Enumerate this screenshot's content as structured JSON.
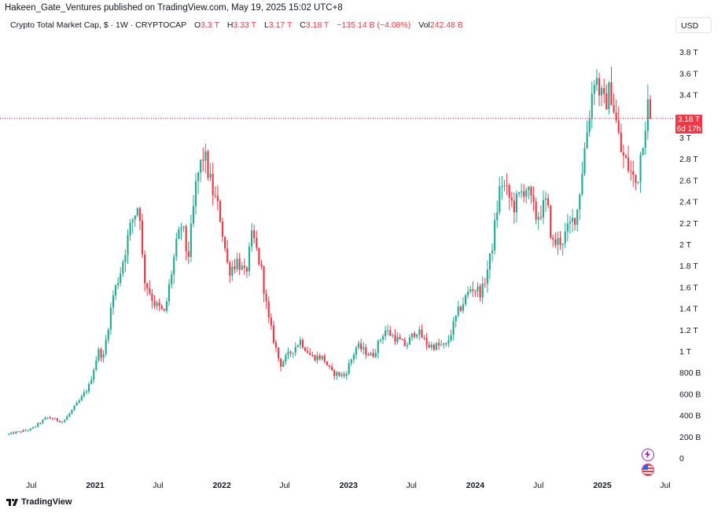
{
  "publisher": "Hakeen_Gate_Ventures published on TradingView.com, May 19, 2025 15:02 UTC+8",
  "legend": {
    "title": "Crypto Total Market Cap, $ · 1W · CRYPTOCAP",
    "o_label": "O",
    "o_value": "3.3 T",
    "h_label": "H",
    "h_value": "3.33 T",
    "l_label": "L",
    "l_value": "3.17 T",
    "c_label": "C",
    "c_value": "3.18 T",
    "change": "−135.14 B (−4.08%)",
    "vol_label": "Vol",
    "vol_value": "242.48 B"
  },
  "currency_button": "USD",
  "price_tag": {
    "price": "3.18 T",
    "countdown": "6d 17h"
  },
  "footer_brand": "TradingView",
  "colors": {
    "up": "#22ab94",
    "down": "#f23645",
    "axis_text": "#131722",
    "price_line": "#f23645"
  },
  "icons": {
    "bolt": "lightning-bolt-icon",
    "flag": "us-flag-icon",
    "logo": "tradingview-logo-icon"
  },
  "chart_data": {
    "type": "candlestick",
    "title": "Crypto Total Market Cap, $ · 1W · CRYPTOCAP",
    "y_axis_labels": [
      "3.8 T",
      "3.6 T",
      "3.4 T",
      "3 T",
      "2.8 T",
      "2.6 T",
      "2.4 T",
      "2.2 T",
      "2 T",
      "1.8 T",
      "1.6 T",
      "1.4 T",
      "1.2 T",
      "1 T",
      "800 B",
      "600 B",
      "400 B",
      "200 B",
      "0"
    ],
    "y_axis_values": [
      3.8,
      3.6,
      3.4,
      3.0,
      2.8,
      2.6,
      2.4,
      2.2,
      2.0,
      1.8,
      1.6,
      1.4,
      1.2,
      1.0,
      0.8,
      0.6,
      0.4,
      0.2,
      0
    ],
    "x_axis_labels": [
      "Jul",
      "2021",
      "Jul",
      "2022",
      "Jul",
      "2023",
      "Jul",
      "2024",
      "Jul",
      "2025",
      "Jul"
    ],
    "x_axis_dates": [
      "2020-07-01",
      "2021-01-01",
      "2021-07-01",
      "2022-01-01",
      "2022-07-01",
      "2023-01-01",
      "2023-07-01",
      "2024-01-01",
      "2024-07-01",
      "2025-01-01",
      "2025-07-01"
    ],
    "unit": "trillion USD",
    "current_close": 3.18,
    "anchors": [
      {
        "date": "2020-04-20",
        "value": 0.22
      },
      {
        "date": "2020-07-01",
        "value": 0.27
      },
      {
        "date": "2020-08-15",
        "value": 0.38
      },
      {
        "date": "2020-10-01",
        "value": 0.34
      },
      {
        "date": "2020-11-20",
        "value": 0.55
      },
      {
        "date": "2020-12-15",
        "value": 0.68
      },
      {
        "date": "2021-01-10",
        "value": 1.0
      },
      {
        "date": "2021-01-25",
        "value": 0.95
      },
      {
        "date": "2021-02-20",
        "value": 1.5
      },
      {
        "date": "2021-03-15",
        "value": 1.75
      },
      {
        "date": "2021-04-15",
        "value": 2.2
      },
      {
        "date": "2021-05-08",
        "value": 2.4
      },
      {
        "date": "2021-05-20",
        "value": 1.7
      },
      {
        "date": "2021-06-20",
        "value": 1.45
      },
      {
        "date": "2021-07-20",
        "value": 1.35
      },
      {
        "date": "2021-08-20",
        "value": 1.95
      },
      {
        "date": "2021-09-08",
        "value": 2.2
      },
      {
        "date": "2021-09-25",
        "value": 1.85
      },
      {
        "date": "2021-10-20",
        "value": 2.6
      },
      {
        "date": "2021-11-10",
        "value": 2.85
      },
      {
        "date": "2021-12-05",
        "value": 2.5
      },
      {
        "date": "2021-12-25",
        "value": 2.3
      },
      {
        "date": "2022-01-20",
        "value": 1.75
      },
      {
        "date": "2022-02-15",
        "value": 1.85
      },
      {
        "date": "2022-03-10",
        "value": 1.7
      },
      {
        "date": "2022-03-30",
        "value": 2.1
      },
      {
        "date": "2022-04-25",
        "value": 1.75
      },
      {
        "date": "2022-05-15",
        "value": 1.3
      },
      {
        "date": "2022-06-18",
        "value": 0.87
      },
      {
        "date": "2022-07-20",
        "value": 1.0
      },
      {
        "date": "2022-08-15",
        "value": 1.1
      },
      {
        "date": "2022-09-15",
        "value": 0.95
      },
      {
        "date": "2022-10-20",
        "value": 0.94
      },
      {
        "date": "2022-11-12",
        "value": 0.8
      },
      {
        "date": "2022-12-20",
        "value": 0.77
      },
      {
        "date": "2023-01-25",
        "value": 1.05
      },
      {
        "date": "2023-03-10",
        "value": 0.95
      },
      {
        "date": "2023-04-15",
        "value": 1.2
      },
      {
        "date": "2023-06-15",
        "value": 1.05
      },
      {
        "date": "2023-07-15",
        "value": 1.2
      },
      {
        "date": "2023-08-20",
        "value": 1.05
      },
      {
        "date": "2023-10-10",
        "value": 1.05
      },
      {
        "date": "2023-11-10",
        "value": 1.35
      },
      {
        "date": "2023-12-20",
        "value": 1.6
      },
      {
        "date": "2024-01-20",
        "value": 1.55
      },
      {
        "date": "2024-02-15",
        "value": 1.9
      },
      {
        "date": "2024-03-15",
        "value": 2.6
      },
      {
        "date": "2024-04-20",
        "value": 2.35
      },
      {
        "date": "2024-05-25",
        "value": 2.55
      },
      {
        "date": "2024-06-25",
        "value": 2.25
      },
      {
        "date": "2024-07-25",
        "value": 2.4
      },
      {
        "date": "2024-08-10",
        "value": 2.0
      },
      {
        "date": "2024-09-10",
        "value": 2.05
      },
      {
        "date": "2024-10-20",
        "value": 2.3
      },
      {
        "date": "2024-11-15",
        "value": 3.0
      },
      {
        "date": "2024-12-10",
        "value": 3.6
      },
      {
        "date": "2025-01-05",
        "value": 3.3
      },
      {
        "date": "2025-01-25",
        "value": 3.45
      },
      {
        "date": "2025-02-25",
        "value": 2.85
      },
      {
        "date": "2025-03-20",
        "value": 2.7
      },
      {
        "date": "2025-04-10",
        "value": 2.55
      },
      {
        "date": "2025-04-25",
        "value": 2.95
      },
      {
        "date": "2025-05-12",
        "value": 3.3
      },
      {
        "date": "2025-05-19",
        "value": 3.18
      }
    ]
  }
}
